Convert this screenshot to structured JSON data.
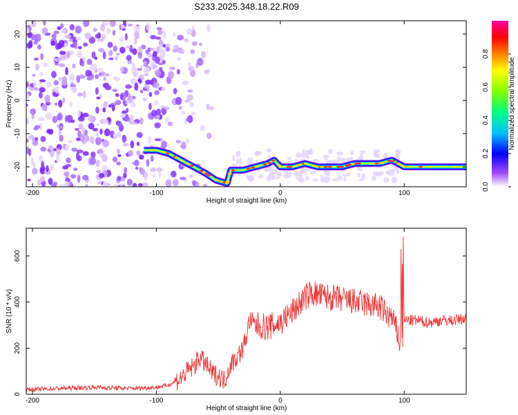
{
  "title": "S233.2025.348.18.22.R09",
  "chart_data": [
    {
      "type": "heatmap",
      "xlabel": "Height of straight line (km)",
      "ylabel": "Frequency (Hz)",
      "xlim": [
        -205,
        150
      ],
      "ylim": [
        -26,
        24
      ],
      "xticks": [
        -200,
        -100,
        0,
        100
      ],
      "yticks": [
        -20,
        -10,
        0,
        10,
        20
      ],
      "colorbar": {
        "label": "Normalized spectral amplitude",
        "range": [
          0.0,
          1.0
        ],
        "ticks": [
          0.0,
          0.2,
          0.4,
          0.6,
          0.8
        ],
        "tick_labels": [
          "0.0",
          "0.2",
          "0.4",
          "0.6",
          "0.8"
        ],
        "colormap": [
          "#ffffff",
          "#7f00ff",
          "#0000ff",
          "#00bfff",
          "#00ff80",
          "#80ff00",
          "#ffff00",
          "#ff8000",
          "#ff0000",
          "#ff00a0"
        ]
      },
      "dominant_track": {
        "x": [
          -110,
          -100,
          -90,
          -80,
          -70,
          -60,
          -52,
          -43,
          -40,
          -30,
          -20,
          -10,
          -5,
          0,
          10,
          20,
          30,
          40,
          50,
          60,
          70,
          80,
          90,
          95,
          100,
          120,
          150
        ],
        "y": [
          -15,
          -15,
          -16,
          -18,
          -20,
          -22,
          -24,
          -25,
          -21,
          -21,
          -20,
          -19,
          -18,
          -20,
          -20,
          -19,
          -20,
          -20,
          -20,
          -19,
          -19,
          -19,
          -18,
          -19,
          -20,
          -20,
          -20
        ]
      }
    },
    {
      "type": "line",
      "xlabel": "Height of straight line (km)",
      "ylabel": "SNR (10 * v/v)",
      "xlim": [
        -205,
        150
      ],
      "ylim": [
        0,
        720
      ],
      "xticks": [
        -200,
        -100,
        0,
        100
      ],
      "yticks": [
        0,
        200,
        400,
        600
      ],
      "series": [
        {
          "color": "#ee3333",
          "x": [
            -205,
            -180,
            -150,
            -120,
            -100,
            -90,
            -80,
            -75,
            -70,
            -65,
            -60,
            -55,
            -50,
            -45,
            -40,
            -35,
            -30,
            -27,
            -25,
            -20,
            -10,
            0,
            10,
            20,
            25,
            30,
            40,
            50,
            60,
            70,
            80,
            85,
            90,
            95,
            97,
            98,
            100,
            110,
            120,
            130,
            140,
            150
          ],
          "y": [
            20,
            25,
            30,
            25,
            30,
            40,
            70,
            100,
            120,
            160,
            130,
            90,
            80,
            60,
            130,
            160,
            200,
            260,
            320,
            300,
            290,
            310,
            360,
            420,
            440,
            430,
            420,
            410,
            400,
            390,
            380,
            350,
            330,
            260,
            200,
            600,
            320,
            320,
            310,
            320,
            320,
            330
          ]
        }
      ]
    }
  ]
}
